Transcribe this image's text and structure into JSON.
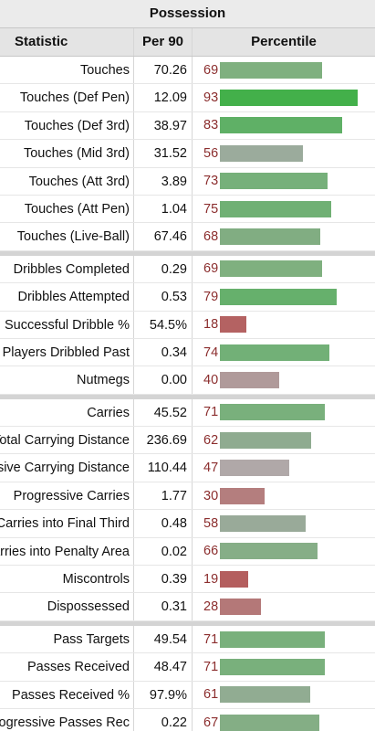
{
  "title": "Possession",
  "headers": {
    "statistic": "Statistic",
    "per90": "Per 90",
    "percentile": "Percentile"
  },
  "groups": [
    {
      "rows": [
        {
          "stat": "Touches",
          "per90": "70.26",
          "pct": "69",
          "pct_value": 69,
          "color": "#7fb07f"
        },
        {
          "stat": "Touches (Def Pen)",
          "per90": "12.09",
          "pct": "93",
          "pct_value": 93,
          "color": "#43b04a"
        },
        {
          "stat": "Touches (Def 3rd)",
          "per90": "38.97",
          "pct": "83",
          "pct_value": 83,
          "color": "#5fb066"
        },
        {
          "stat": "Touches (Mid 3rd)",
          "per90": "31.52",
          "pct": "56",
          "pct_value": 56,
          "color": "#9bab9c"
        },
        {
          "stat": "Touches (Att 3rd)",
          "per90": "3.89",
          "pct": "73",
          "pct_value": 73,
          "color": "#76b07a"
        },
        {
          "stat": "Touches (Att Pen)",
          "per90": "1.04",
          "pct": "75",
          "pct_value": 75,
          "color": "#70b074"
        },
        {
          "stat": "Touches (Live-Ball)",
          "per90": "67.46",
          "pct": "68",
          "pct_value": 68,
          "color": "#81ad82"
        }
      ]
    },
    {
      "rows": [
        {
          "stat": "Dribbles Completed",
          "per90": "0.29",
          "pct": "69",
          "pct_value": 69,
          "color": "#7fb07f"
        },
        {
          "stat": "Dribbles Attempted",
          "per90": "0.53",
          "pct": "79",
          "pct_value": 79,
          "color": "#66b06c"
        },
        {
          "stat": "Successful Dribble %",
          "per90": "54.5%",
          "pct": "18",
          "pct_value": 18,
          "color": "#b46262"
        },
        {
          "stat": "Players Dribbled Past",
          "per90": "0.34",
          "pct": "74",
          "pct_value": 74,
          "color": "#72b077"
        },
        {
          "stat": "Nutmegs",
          "per90": "0.00",
          "pct": "40",
          "pct_value": 40,
          "color": "#b09a9a"
        }
      ]
    },
    {
      "rows": [
        {
          "stat": "Carries",
          "per90": "45.52",
          "pct": "71",
          "pct_value": 71,
          "color": "#79b07c"
        },
        {
          "stat": "Total Carrying Distance",
          "per90": "236.69",
          "pct": "62",
          "pct_value": 62,
          "color": "#8fab90"
        },
        {
          "stat": "Progressive Carrying Distance",
          "per90": "110.44",
          "pct": "47",
          "pct_value": 47,
          "color": "#b0a8a8"
        },
        {
          "stat": "Progressive Carries",
          "per90": "1.77",
          "pct": "30",
          "pct_value": 30,
          "color": "#b47e7e"
        },
        {
          "stat": "Carries into Final Third",
          "per90": "0.48",
          "pct": "58",
          "pct_value": 58,
          "color": "#99aa99"
        },
        {
          "stat": "Carries into Penalty Area",
          "per90": "0.02",
          "pct": "66",
          "pct_value": 66,
          "color": "#86ae87"
        },
        {
          "stat": "Miscontrols",
          "per90": "0.39",
          "pct": "19",
          "pct_value": 19,
          "color": "#b45e5e"
        },
        {
          "stat": "Dispossessed",
          "per90": "0.31",
          "pct": "28",
          "pct_value": 28,
          "color": "#b47878"
        }
      ]
    },
    {
      "rows": [
        {
          "stat": "Pass Targets",
          "per90": "49.54",
          "pct": "71",
          "pct_value": 71,
          "color": "#79b07c"
        },
        {
          "stat": "Passes Received",
          "per90": "48.47",
          "pct": "71",
          "pct_value": 71,
          "color": "#79b07c"
        },
        {
          "stat": "Passes Received %",
          "per90": "97.9%",
          "pct": "61",
          "pct_value": 61,
          "color": "#91ac92"
        },
        {
          "stat": "Progressive Passes Rec",
          "per90": "0.22",
          "pct": "67",
          "pct_value": 67,
          "color": "#84ae85"
        }
      ]
    }
  ]
}
